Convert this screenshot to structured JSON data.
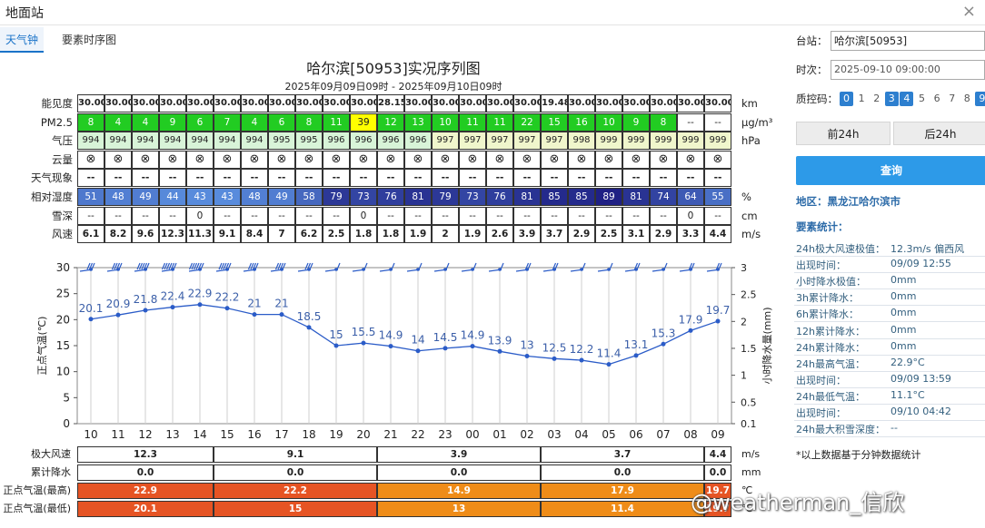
{
  "window": {
    "title": "地面站",
    "close": "×"
  },
  "tabs": [
    "天气钟",
    "要素时序图"
  ],
  "title": "哈尔滨[50953]实况序列图",
  "subtitle": "2025年09月09日09时 - 2025年09月10日09时",
  "hours": [
    "10",
    "11",
    "12",
    "13",
    "14",
    "15",
    "16",
    "17",
    "18",
    "19",
    "20",
    "21",
    "22",
    "23",
    "00",
    "01",
    "02",
    "03",
    "04",
    "05",
    "06",
    "07",
    "08",
    "09"
  ],
  "rows": [
    {
      "label": "能见度",
      "unit": "km",
      "values": [
        "30.00",
        "30.00",
        "30.00",
        "30.00",
        "30.00",
        "30.00",
        "30.00",
        "30.00",
        "30.00",
        "30.00",
        "30.00",
        "28.15",
        "30.00",
        "30.00",
        "30.00",
        "30.00",
        "30.00",
        "19.48",
        "30.00",
        "30.00",
        "30.00",
        "30.00",
        "30.00",
        "30.00"
      ]
    },
    {
      "label": "PM2.5",
      "unit": "μg/m³",
      "values": [
        "8",
        "4",
        "4",
        "9",
        "6",
        "7",
        "4",
        "6",
        "8",
        "11",
        "39",
        "12",
        "13",
        "10",
        "11",
        "11",
        "22",
        "15",
        "16",
        "10",
        "9",
        "8",
        "--",
        "--"
      ]
    },
    {
      "label": "气压",
      "unit": "hPa",
      "values": [
        "994",
        "994",
        "994",
        "994",
        "994",
        "994",
        "994",
        "995",
        "995",
        "996",
        "996",
        "996",
        "996",
        "997",
        "997",
        "997",
        "997",
        "997",
        "998",
        "999",
        "999",
        "999",
        "999",
        "999"
      ]
    },
    {
      "label": "云量",
      "unit": "",
      "values": [
        "⊗",
        "⊗",
        "⊗",
        "⊗",
        "⊗",
        "⊗",
        "⊗",
        "⊗",
        "⊗",
        "⊗",
        "⊗",
        "⊗",
        "⊗",
        "⊗",
        "⊗",
        "⊗",
        "⊗",
        "⊗",
        "⊗",
        "⊗",
        "⊗",
        "⊗",
        "⊗",
        "⊗"
      ]
    },
    {
      "label": "天气现象",
      "unit": "",
      "values": [
        "--",
        "--",
        "--",
        "--",
        "--",
        "--",
        "--",
        "--",
        "--",
        "--",
        "--",
        "--",
        "--",
        "--",
        "--",
        "--",
        "--",
        "--",
        "--",
        "--",
        "--",
        "--",
        "--",
        "--"
      ]
    },
    {
      "label": "相对湿度",
      "unit": "%",
      "values": [
        "51",
        "48",
        "49",
        "44",
        "43",
        "43",
        "48",
        "49",
        "58",
        "79",
        "73",
        "76",
        "81",
        "79",
        "73",
        "76",
        "81",
        "85",
        "85",
        "89",
        "81",
        "74",
        "64",
        "55"
      ]
    },
    {
      "label": "雪深",
      "unit": "cm",
      "values": [
        "--",
        "--",
        "--",
        "--",
        "0",
        "--",
        "--",
        "--",
        "--",
        "--",
        "0",
        "--",
        "--",
        "--",
        "--",
        "--",
        "--",
        "--",
        "--",
        "--",
        "--",
        "--",
        "0",
        "--"
      ]
    },
    {
      "label": "风速",
      "unit": "m/s",
      "values": [
        "6.1",
        "8.2",
        "9.6",
        "12.3",
        "11.3",
        "9.1",
        "8.4",
        "7",
        "6.2",
        "2.5",
        "1.8",
        "1.8",
        "1.9",
        "2",
        "1.9",
        "2.6",
        "3.9",
        "3.7",
        "2.9",
        "2.5",
        "3.1",
        "2.9",
        "3.3",
        "4.4"
      ]
    }
  ],
  "colors": {
    "pm_green": "#22cc22",
    "pm_yellow": "#ffff00",
    "pressure_bg": "#d8f4d8",
    "pressure_bg2": "#f0f6cc",
    "line": "#2b5cc8",
    "accent": "#1a73c8",
    "btn_blue": "#2d9ae8",
    "hot1": "#e65424",
    "hot2": "#ef8c18"
  },
  "chart_data": {
    "type": "line",
    "x": [
      "10",
      "11",
      "12",
      "13",
      "14",
      "15",
      "16",
      "17",
      "18",
      "19",
      "20",
      "21",
      "22",
      "23",
      "00",
      "01",
      "02",
      "03",
      "04",
      "05",
      "06",
      "07",
      "08",
      "09"
    ],
    "series": [
      {
        "values": [
          20.1,
          20.9,
          21.8,
          22.4,
          22.9,
          22.2,
          21,
          21,
          18.5,
          15,
          15.5,
          14.9,
          14,
          14.5,
          14.9,
          13.9,
          13,
          12.5,
          12.2,
          11.4,
          13.1,
          15.3,
          17.9,
          19.7
        ]
      }
    ],
    "ylabel": "正点气温(℃)",
    "y2label": "小时降水量(mm)",
    "ylim": [
      0,
      30
    ],
    "y2lim": [
      0.1,
      3
    ],
    "yticks": [
      "0",
      "5",
      "10",
      "15",
      "20",
      "25",
      "30"
    ],
    "y2ticks": [
      "0.1",
      "0.5",
      "1",
      "1.5",
      "2",
      "2.5",
      "3"
    ],
    "grid": true
  },
  "bottom": {
    "rows": [
      {
        "label": "极大风速",
        "unit": "m/s",
        "values": [
          "12.3",
          "9.1",
          "3.9",
          "3.7",
          "4.4"
        ]
      },
      {
        "label": "累计降水",
        "unit": "mm",
        "values": [
          "0.0",
          "0.0",
          "0.0",
          "0.0",
          "0.0"
        ]
      },
      {
        "label": "正点气温(最高)",
        "unit": "℃",
        "values": [
          "22.9",
          "22.2",
          "14.9",
          "17.9",
          "19.7"
        ]
      },
      {
        "label": "正点气温(最低)",
        "unit": "℃",
        "values": [
          "20.1",
          "15",
          "13",
          "11.4",
          "19.7"
        ]
      }
    ]
  },
  "watermark": "@weatherman_信欣",
  "side": {
    "station_label": "台站：",
    "station_value": "哈尔滨[50953]",
    "time_label": "时次：",
    "time_value": "2025-09-10 09:00:00",
    "qc_label": "质控码：",
    "qc_codes": [
      "0",
      "1",
      "2",
      "3",
      "4",
      "5",
      "6",
      "7",
      "8",
      "9"
    ],
    "qc_on": [
      "0",
      "3",
      "4",
      "9"
    ],
    "prev_btn": "前24h",
    "next_btn": "后24h",
    "query_btn": "查询",
    "region": "地区：黑龙江哈尔滨市",
    "stats_title": "要素统计：",
    "stats": [
      {
        "label": "24h极大风速极值：",
        "value": "12.3m/s 偏西风"
      },
      {
        "label": "出现时间：",
        "value": "09/09 12:55"
      },
      {
        "label": "小时降水极值：",
        "value": "0mm"
      },
      {
        "label": "3h累计降水：",
        "value": "0mm"
      },
      {
        "label": "6h累计降水：",
        "value": "0mm"
      },
      {
        "label": "12h累计降水：",
        "value": "0mm"
      },
      {
        "label": "24h累计降水：",
        "value": "0mm"
      },
      {
        "label": "24h最高气温：",
        "value": "22.9°C"
      },
      {
        "label": "出现时间：",
        "value": "09/09 13:59"
      },
      {
        "label": "24h最低气温：",
        "value": "11.1°C"
      },
      {
        "label": "出现时间：",
        "value": "09/10 04:42"
      },
      {
        "label": "24h最大积雪深度：",
        "value": "--"
      }
    ],
    "footnote": "*以上数据基于分钟数据统计"
  }
}
